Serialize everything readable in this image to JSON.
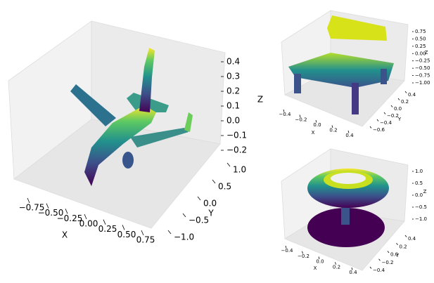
{
  "chart_data": [
    {
      "type": "scatter3d",
      "xlabel": "X",
      "ylabel": "Y",
      "zlabel": "Z",
      "xlim": [
        -0.75,
        0.75
      ],
      "ylim": [
        -1.0,
        1.0
      ],
      "zlim": [
        -0.2,
        0.4
      ],
      "xticks": [
        {
          "value": -0.75,
          "label": "−0.75"
        },
        {
          "value": -0.5,
          "label": "−0.50"
        },
        {
          "value": -0.25,
          "label": "−0.25"
        },
        {
          "value": 0,
          "label": "0.00"
        },
        0.25,
        {
          "value": 0.5,
          "label": "0.50"
        },
        0.75
      ],
      "yticks": [
        {
          "value": -1.0,
          "label": "−1.0"
        },
        {
          "value": -0.5,
          "label": "−0.5"
        },
        {
          "value": 0,
          "label": "0.0"
        },
        0.5,
        {
          "value": 1.0,
          "label": "1.0"
        }
      ],
      "zticks": [
        {
          "value": -0.2,
          "label": "−0.2"
        },
        {
          "value": -0.1,
          "label": "−0.1"
        },
        {
          "value": 0,
          "label": "0.0"
        },
        0.1,
        0.2,
        0.3,
        0.4
      ]
    },
    {
      "type": "scatter3d",
      "xlabel": "X",
      "ylabel": "Y",
      "zlabel": "Z",
      "xlim": [
        -0.4,
        0.4
      ],
      "ylim": [
        -0.6,
        0.4
      ],
      "zlim": [
        -1.0,
        0.75
      ],
      "xticks": [
        {
          "value": -0.4,
          "label": "−0.4"
        },
        {
          "value": -0.2,
          "label": "−0.2"
        },
        {
          "value": 0,
          "label": "0.0"
        },
        0.2,
        0.4
      ],
      "yticks": [
        {
          "value": -0.6,
          "label": "−0.6"
        },
        {
          "value": -0.4,
          "label": "−0.4"
        },
        {
          "value": -0.2,
          "label": "−0.2"
        },
        {
          "value": 0,
          "label": "0.0"
        },
        0.2,
        0.4
      ],
      "zticks": [
        {
          "value": -1.0,
          "label": "−1.00"
        },
        {
          "value": -0.75,
          "label": "−0.75"
        },
        {
          "value": -0.5,
          "label": "−0.50"
        },
        {
          "value": -0.25,
          "label": "−0.25"
        },
        {
          "value": 0,
          "label": "0.00"
        },
        0.25,
        {
          "value": 0.5,
          "label": "0.50"
        },
        0.75
      ]
    },
    {
      "type": "scatter3d",
      "xlabel": "X",
      "ylabel": "Y",
      "zlabel": "Z",
      "xlim": [
        -0.4,
        0.4
      ],
      "ylim": [
        -0.4,
        0.4
      ],
      "zlim": [
        -1.0,
        1.0
      ],
      "xticks": [
        {
          "value": -0.4,
          "label": "−0.4"
        },
        {
          "value": -0.2,
          "label": "−0.2"
        },
        {
          "value": 0,
          "label": "0.0"
        },
        0.2,
        0.4
      ],
      "yticks": [
        {
          "value": -0.4,
          "label": "−0.4"
        },
        {
          "value": -0.2,
          "label": "−0.2"
        },
        {
          "value": 0,
          "label": "0.0"
        },
        0.2,
        0.4
      ],
      "zticks": [
        {
          "value": -1.0,
          "label": "−1.0"
        },
        {
          "value": -0.5,
          "label": "−0.5"
        },
        {
          "value": 0,
          "label": "0.0"
        },
        0.5,
        {
          "value": 1.0,
          "label": "1.0"
        }
      ]
    }
  ]
}
